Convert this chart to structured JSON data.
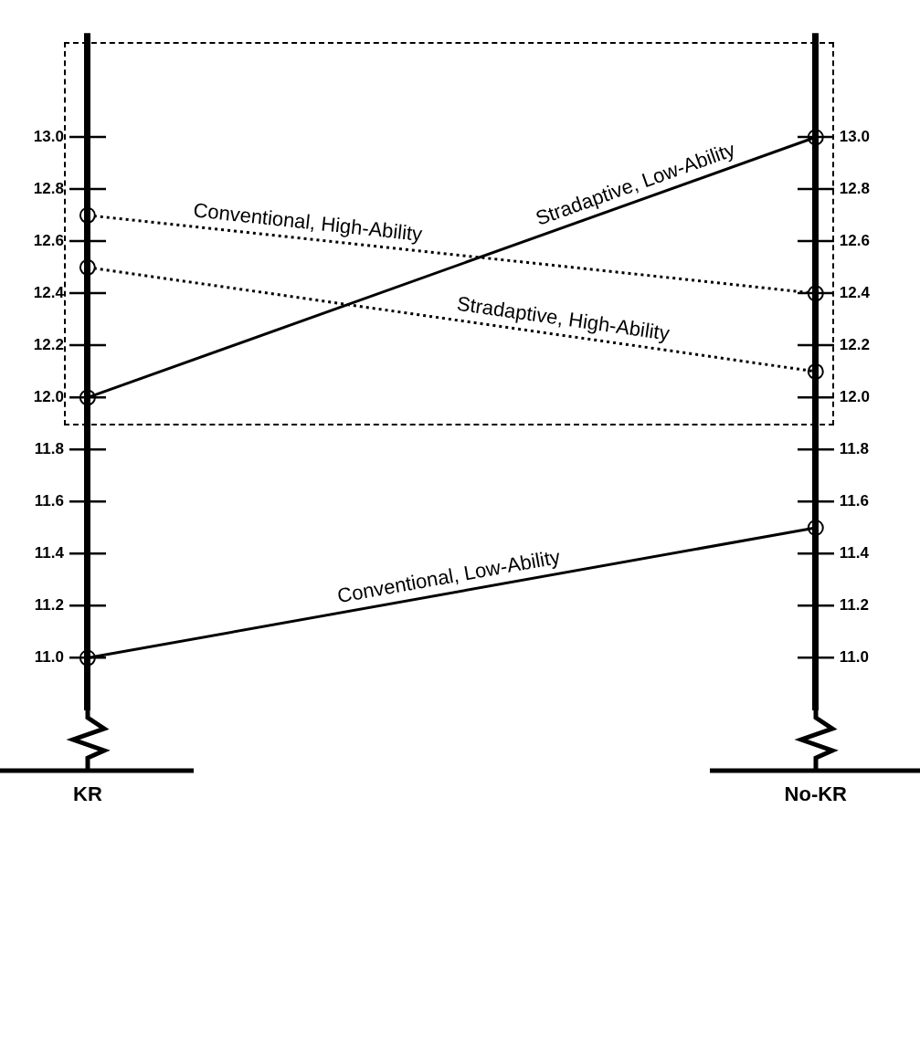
{
  "chart_data": {
    "type": "line",
    "categories": [
      "KR",
      "No-KR"
    ],
    "series": [
      {
        "name": "Conventional, High-Ability",
        "color": "#000000",
        "values": [
          12.7,
          12.4
        ],
        "line_style": "dotted"
      },
      {
        "name": "Stradaptive, High-Ability",
        "color": "#000000",
        "values": [
          12.5,
          12.1
        ],
        "line_style": "dotted"
      },
      {
        "name": "Stradaptive, Low-Ability",
        "color": "#000000",
        "values": [
          12.0,
          13.0
        ],
        "line_style": "solid"
      },
      {
        "name": "Conventional, Low-Ability",
        "color": "#000000",
        "values": [
          11.0,
          11.5
        ],
        "line_style": "solid"
      }
    ],
    "ylim": [
      10.8,
      13.4
    ],
    "yticks": [
      {
        "value": 11,
        "label": "11.0"
      },
      11.2,
      11.4,
      11.6,
      11.8,
      {
        "value": 12,
        "label": "12.0"
      },
      12.2,
      12.4,
      12.6,
      12.8,
      {
        "value": 13,
        "label": "13.0"
      }
    ],
    "y2lim": [
      10.8,
      13.4
    ],
    "y2ticks": [
      {
        "value": 11,
        "label": "11.0"
      },
      11.2,
      11.4,
      11.6,
      11.8,
      {
        "value": 12,
        "label": "12.0"
      },
      12.2,
      12.4,
      12.6,
      12.8,
      {
        "value": 13,
        "label": "13.0"
      }
    ],
    "marker": "circle",
    "legend": false,
    "grid": "x"
  }
}
